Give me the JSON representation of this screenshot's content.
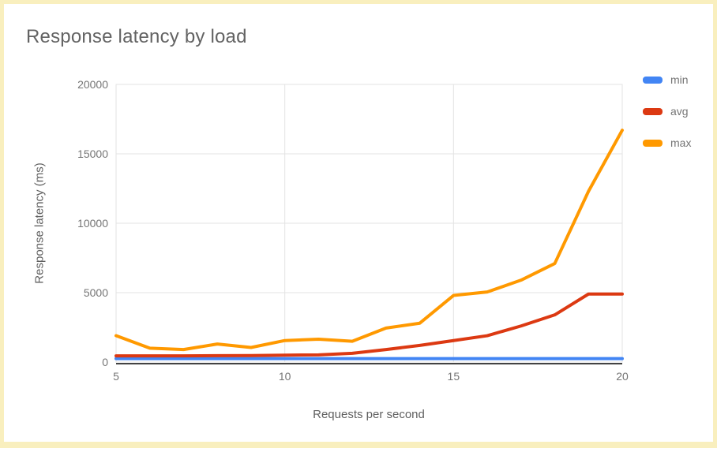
{
  "page": {
    "frame_border_color": "#f9efbe",
    "background_color": "#ffffff"
  },
  "chart_data": {
    "type": "line",
    "title": "Response latency by load",
    "xlabel": "Requests per second",
    "ylabel": "Response latency (ms)",
    "x": [
      5,
      6,
      7,
      8,
      9,
      10,
      11,
      12,
      13,
      14,
      15,
      16,
      17,
      18,
      19,
      20
    ],
    "series": [
      {
        "name": "min",
        "color": "#4285f4",
        "values": [
          250,
          250,
          250,
          250,
          250,
          250,
          250,
          250,
          250,
          250,
          250,
          250,
          250,
          250,
          250,
          250
        ]
      },
      {
        "name": "avg",
        "color": "#dc3912",
        "values": [
          450,
          450,
          450,
          460,
          470,
          500,
          520,
          630,
          900,
          1200,
          1550,
          1900,
          2600,
          3400,
          4900,
          4900
        ]
      },
      {
        "name": "max",
        "color": "#ff9900",
        "values": [
          1900,
          1000,
          900,
          1300,
          1050,
          1550,
          1650,
          1500,
          2450,
          2800,
          4800,
          5050,
          5900,
          7100,
          12300,
          16700
        ]
      }
    ],
    "xlim": [
      5,
      20
    ],
    "ylim": [
      0,
      20000
    ],
    "x_ticks": [
      5,
      10,
      15,
      20
    ],
    "y_ticks": [
      0,
      5000,
      10000,
      15000,
      20000
    ],
    "grid": true,
    "legend_position": "right",
    "gridline_color": "#e3e3e3",
    "baseline_color": "#424242"
  }
}
